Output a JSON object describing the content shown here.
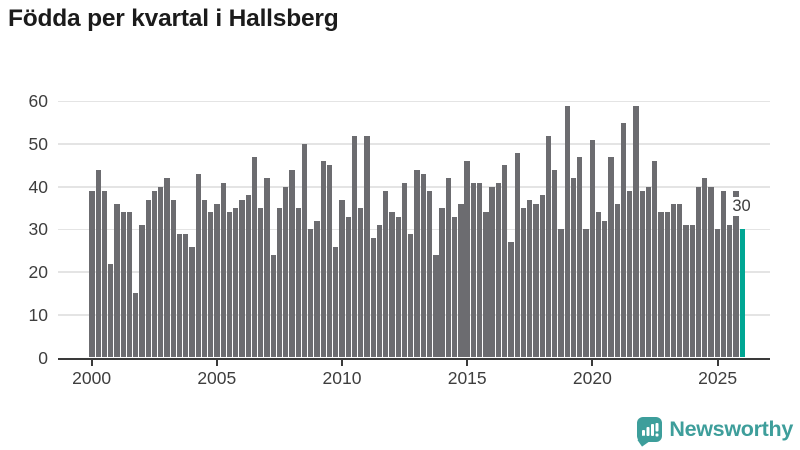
{
  "title": "Födda per kvartal i Hallsberg",
  "annotation": {
    "label": "30"
  },
  "branding": {
    "logo_text": "Newsworthy",
    "brand_color": "#3d9e9b"
  },
  "colors": {
    "bar": "#6c6c70",
    "highlight": "#00a693",
    "grid": "#e4e4e4",
    "axis": "#3a3a3a",
    "tick_text": "#3e3e3e",
    "title_text": "#1b1b1b"
  },
  "chart_data": {
    "type": "bar",
    "title": "Födda per kvartal i Hallsberg",
    "xlabel": "",
    "ylabel": "",
    "ylim": [
      0,
      62
    ],
    "grid": "horizontal",
    "legend": "none",
    "y_ticks": [
      0,
      10,
      20,
      30,
      40,
      50,
      60
    ],
    "x_tick_labels": [
      "2000",
      "2005",
      "2010",
      "2015",
      "2020",
      "2025"
    ],
    "highlight_index": 104,
    "highlight_label": "30",
    "x": [
      "2000 Q1",
      "2000 Q2",
      "2000 Q3",
      "2000 Q4",
      "2001 Q1",
      "2001 Q2",
      "2001 Q3",
      "2001 Q4",
      "2002 Q1",
      "2002 Q2",
      "2002 Q3",
      "2002 Q4",
      "2003 Q1",
      "2003 Q2",
      "2003 Q3",
      "2003 Q4",
      "2004 Q1",
      "2004 Q2",
      "2004 Q3",
      "2004 Q4",
      "2005 Q1",
      "2005 Q2",
      "2005 Q3",
      "2005 Q4",
      "2006 Q1",
      "2006 Q2",
      "2006 Q3",
      "2006 Q4",
      "2007 Q1",
      "2007 Q2",
      "2007 Q3",
      "2007 Q4",
      "2008 Q1",
      "2008 Q2",
      "2008 Q3",
      "2008 Q4",
      "2009 Q1",
      "2009 Q2",
      "2009 Q3",
      "2009 Q4",
      "2010 Q1",
      "2010 Q2",
      "2010 Q3",
      "2010 Q4",
      "2011 Q1",
      "2011 Q2",
      "2011 Q3",
      "2011 Q4",
      "2012 Q1",
      "2012 Q2",
      "2012 Q3",
      "2012 Q4",
      "2013 Q1",
      "2013 Q2",
      "2013 Q3",
      "2013 Q4",
      "2014 Q1",
      "2014 Q2",
      "2014 Q3",
      "2014 Q4",
      "2015 Q1",
      "2015 Q2",
      "2015 Q3",
      "2015 Q4",
      "2016 Q1",
      "2016 Q2",
      "2016 Q3",
      "2016 Q4",
      "2017 Q1",
      "2017 Q2",
      "2017 Q3",
      "2017 Q4",
      "2018 Q1",
      "2018 Q2",
      "2018 Q3",
      "2018 Q4",
      "2019 Q1",
      "2019 Q2",
      "2019 Q3",
      "2019 Q4",
      "2020 Q1",
      "2020 Q2",
      "2020 Q3",
      "2020 Q4",
      "2021 Q1",
      "2021 Q2",
      "2021 Q3",
      "2021 Q4",
      "2022 Q1",
      "2022 Q2",
      "2022 Q3",
      "2022 Q4",
      "2023 Q1",
      "2023 Q2",
      "2023 Q3",
      "2023 Q4",
      "2024 Q1",
      "2024 Q2",
      "2024 Q3",
      "2024 Q4",
      "2025 Q1",
      "2025 Q2",
      "2025 Q3",
      "2025 Q4",
      "2026 Q1"
    ],
    "values": [
      39,
      44,
      39,
      22,
      36,
      34,
      34,
      15,
      31,
      37,
      39,
      40,
      42,
      37,
      29,
      29,
      26,
      43,
      37,
      34,
      36,
      41,
      34,
      35,
      37,
      38,
      47,
      35,
      42,
      24,
      35,
      40,
      44,
      35,
      50,
      30,
      32,
      46,
      45,
      26,
      37,
      33,
      52,
      35,
      52,
      28,
      31,
      39,
      34,
      33,
      41,
      29,
      44,
      43,
      39,
      24,
      35,
      42,
      33,
      36,
      46,
      41,
      41,
      34,
      40,
      41,
      45,
      27,
      48,
      35,
      37,
      36,
      38,
      52,
      44,
      30,
      59,
      42,
      47,
      30,
      51,
      34,
      32,
      47,
      36,
      55,
      39,
      59,
      39,
      40,
      46,
      34,
      34,
      36,
      36,
      31,
      31,
      40,
      42,
      40,
      30,
      39,
      31,
      39,
      30
    ]
  }
}
